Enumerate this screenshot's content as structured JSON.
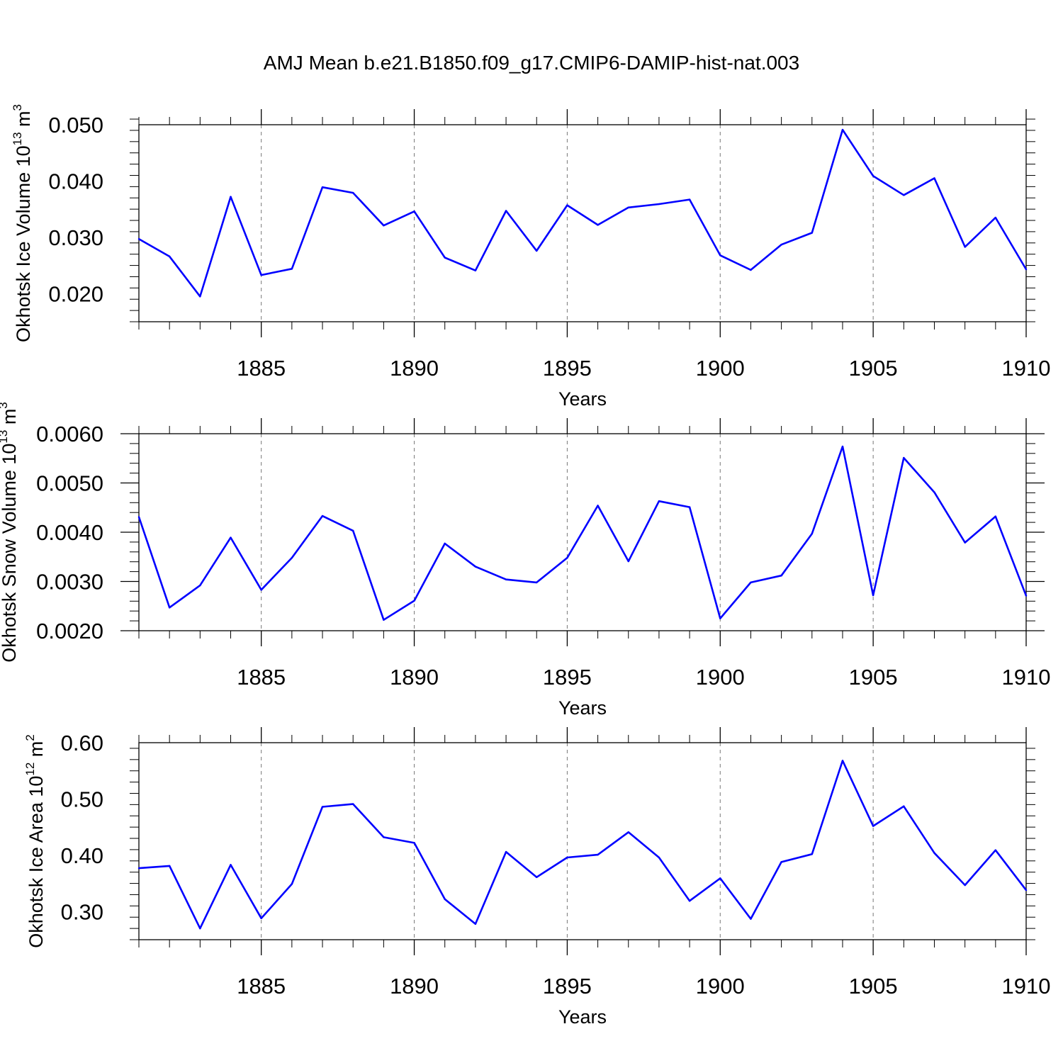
{
  "title": "AMJ Mean b.e21.B1850.f09_g17.CMIP6-DAMIP-hist-nat.003",
  "line_color": "#0000ff",
  "chart_data": [
    {
      "type": "line",
      "ylabel": "Okhotsk Ice Volume 10",
      "ylabel_exp": "13",
      "ylabel_unit": "m",
      "ylabel_unit_exp": "3",
      "xlabel": "Years",
      "xlim": [
        1881,
        1910
      ],
      "ylim": [
        0.015,
        0.05
      ],
      "yticks": [
        0.02,
        0.03,
        0.04,
        0.05
      ],
      "ytick_labels": [
        "0.020",
        "0.030",
        "0.040",
        "0.050"
      ],
      "xticks": [
        1885,
        1890,
        1895,
        1900,
        1905,
        1910
      ],
      "xtick_labels": [
        "1885",
        "1890",
        "1895",
        "1900",
        "1905",
        "1910"
      ],
      "x": [
        1881,
        1882,
        1883,
        1884,
        1885,
        1886,
        1887,
        1888,
        1889,
        1890,
        1891,
        1892,
        1893,
        1894,
        1895,
        1896,
        1897,
        1898,
        1899,
        1900,
        1901,
        1902,
        1903,
        1904,
        1905,
        1906,
        1907,
        1908,
        1909,
        1910
      ],
      "values": [
        0.0297,
        0.0266,
        0.0195,
        0.0372,
        0.0233,
        0.0244,
        0.0389,
        0.0379,
        0.0321,
        0.0346,
        0.0264,
        0.0241,
        0.0347,
        0.0276,
        0.0357,
        0.0322,
        0.0353,
        0.0359,
        0.0367,
        0.0268,
        0.0242,
        0.0287,
        0.0308,
        0.0491,
        0.0409,
        0.0375,
        0.0405,
        0.0283,
        0.0335,
        0.0243
      ]
    },
    {
      "type": "line",
      "ylabel": "Okhotsk Snow Volume 10",
      "ylabel_exp": "13",
      "ylabel_unit": "m",
      "ylabel_unit_exp": "3",
      "xlabel": "Years",
      "xlim": [
        1881,
        1910
      ],
      "ylim": [
        0.002,
        0.006
      ],
      "yticks": [
        0.002,
        0.003,
        0.004,
        0.005,
        0.006
      ],
      "ytick_labels": [
        "0.0020",
        "0.0030",
        "0.0040",
        "0.0050",
        "0.0060"
      ],
      "xticks": [
        1885,
        1890,
        1895,
        1900,
        1905,
        1910
      ],
      "xtick_labels": [
        "1885",
        "1890",
        "1895",
        "1900",
        "1905",
        "1910"
      ],
      "x": [
        1881,
        1882,
        1883,
        1884,
        1885,
        1886,
        1887,
        1888,
        1889,
        1890,
        1891,
        1892,
        1893,
        1894,
        1895,
        1896,
        1897,
        1898,
        1899,
        1900,
        1901,
        1902,
        1903,
        1904,
        1905,
        1906,
        1907,
        1908,
        1909,
        1910
      ],
      "values": [
        0.00431,
        0.00247,
        0.00292,
        0.00389,
        0.00283,
        0.00348,
        0.00433,
        0.00403,
        0.00222,
        0.00261,
        0.00377,
        0.0033,
        0.00304,
        0.00298,
        0.00348,
        0.00454,
        0.00341,
        0.00463,
        0.00451,
        0.00225,
        0.00298,
        0.00312,
        0.00397,
        0.00574,
        0.00272,
        0.00551,
        0.00481,
        0.00379,
        0.00432,
        0.00271
      ]
    },
    {
      "type": "line",
      "ylabel": "Okhotsk Ice Area 10",
      "ylabel_exp": "12",
      "ylabel_unit": "m",
      "ylabel_unit_exp": "2",
      "xlabel": "Years",
      "xlim": [
        1881,
        1910
      ],
      "ylim": [
        0.25,
        0.6
      ],
      "yticks": [
        0.3,
        0.4,
        0.5,
        0.6
      ],
      "ytick_labels": [
        "0.30",
        "0.40",
        "0.50",
        "0.60"
      ],
      "xticks": [
        1885,
        1890,
        1895,
        1900,
        1905,
        1910
      ],
      "xtick_labels": [
        "1885",
        "1890",
        "1895",
        "1900",
        "1905",
        "1910"
      ],
      "x": [
        1881,
        1882,
        1883,
        1884,
        1885,
        1886,
        1887,
        1888,
        1889,
        1890,
        1891,
        1892,
        1893,
        1894,
        1895,
        1896,
        1897,
        1898,
        1899,
        1900,
        1901,
        1902,
        1903,
        1904,
        1905,
        1906,
        1907,
        1908,
        1909,
        1910
      ],
      "values": [
        0.377,
        0.381,
        0.27,
        0.383,
        0.288,
        0.349,
        0.486,
        0.491,
        0.432,
        0.422,
        0.322,
        0.278,
        0.406,
        0.361,
        0.396,
        0.401,
        0.441,
        0.396,
        0.319,
        0.359,
        0.287,
        0.388,
        0.402,
        0.568,
        0.452,
        0.487,
        0.404,
        0.347,
        0.409,
        0.338
      ]
    }
  ]
}
